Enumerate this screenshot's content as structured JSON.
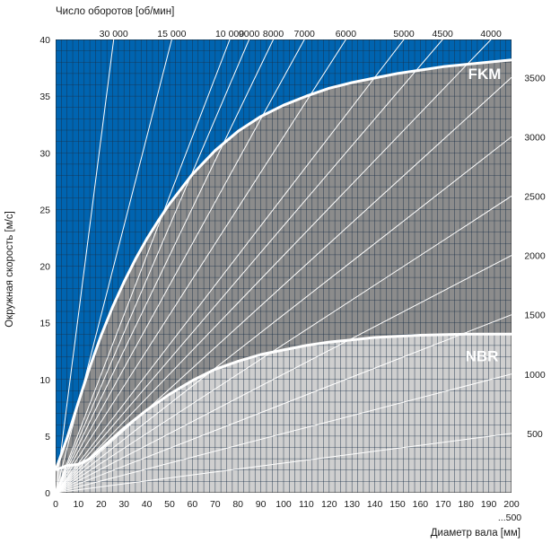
{
  "chart_data": {
    "type": "line",
    "title": "",
    "top_axis_title": "Число оборотов [об/мин]",
    "ylabel": "Окружная скорость [м/с]",
    "xlabel": "Диаметр вала [мм]",
    "x_end_label": "...500",
    "xlim": [
      0,
      200
    ],
    "ylim": [
      0,
      40
    ],
    "x_ticks": [
      0,
      10,
      20,
      30,
      40,
      50,
      60,
      70,
      80,
      90,
      100,
      110,
      120,
      130,
      140,
      150,
      160,
      170,
      180,
      190,
      200
    ],
    "y_ticks": [
      0,
      5,
      10,
      15,
      20,
      25,
      30,
      35,
      40
    ],
    "grid": true,
    "speed_lines_rpm": [
      30000,
      15000,
      10000,
      9000,
      8000,
      7000,
      6000,
      5000,
      4500,
      4000,
      3500,
      3000,
      2500,
      2000,
      1500,
      1000,
      500
    ],
    "top_rpm_labels": [
      {
        "rpm": 30000,
        "text": "30 000"
      },
      {
        "rpm": 15000,
        "text": "15 000"
      },
      {
        "rpm": 10000,
        "text": "10 000"
      },
      {
        "rpm": 9000,
        "text": "9000"
      },
      {
        "rpm": 8000,
        "text": "8000"
      },
      {
        "rpm": 7000,
        "text": "7000"
      },
      {
        "rpm": 6000,
        "text": "6000"
      },
      {
        "rpm": 5000,
        "text": "5000"
      },
      {
        "rpm": 4500,
        "text": "4500"
      },
      {
        "rpm": 4000,
        "text": "4000"
      }
    ],
    "right_rpm_labels": [
      {
        "rpm": 3500,
        "text": "3500"
      },
      {
        "rpm": 3000,
        "text": "3000"
      },
      {
        "rpm": 2500,
        "text": "2500"
      },
      {
        "rpm": 2000,
        "text": "2000"
      },
      {
        "rpm": 1500,
        "text": "1500"
      },
      {
        "rpm": 1000,
        "text": "1000"
      },
      {
        "rpm": 500,
        "text": "500"
      }
    ],
    "series": [
      {
        "name": "FKM",
        "color": "#ffffff",
        "x": [
          0,
          5,
          10,
          15,
          20,
          25,
          30,
          35,
          40,
          45,
          50,
          60,
          70,
          80,
          90,
          100,
          110,
          120,
          130,
          140,
          150,
          160,
          170,
          180,
          190,
          200
        ],
        "y": [
          2.0,
          4.8,
          8.0,
          11.1,
          13.9,
          16.4,
          18.6,
          20.6,
          22.4,
          24.0,
          25.5,
          28.1,
          30.2,
          31.9,
          33.2,
          34.2,
          35.0,
          35.7,
          36.2,
          36.6,
          37.0,
          37.3,
          37.6,
          37.8,
          38.0,
          38.2
        ]
      },
      {
        "name": "NBR",
        "color": "#ffffff",
        "x": [
          0,
          5,
          10,
          15,
          20,
          25,
          30,
          35,
          40,
          45,
          50,
          60,
          70,
          80,
          90,
          100,
          110,
          120,
          130,
          140,
          150,
          160,
          170,
          180,
          190,
          200
        ],
        "y": [
          2.0,
          2.4,
          2.5,
          3.0,
          3.9,
          4.8,
          5.7,
          6.5,
          7.3,
          8.0,
          8.7,
          9.9,
          10.9,
          11.6,
          12.2,
          12.6,
          13.0,
          13.3,
          13.5,
          13.7,
          13.8,
          13.9,
          13.95,
          14.0,
          14.0,
          14.0
        ]
      }
    ],
    "colors": {
      "background": "#0064b0",
      "fkm_fill": "#8c8c8c",
      "nbr_fill": "#cfcfcf",
      "grid_on_blue": "#0d2f52",
      "grid_on_gray": "#1e1e1e",
      "speed_lines": "#ffffff"
    }
  }
}
